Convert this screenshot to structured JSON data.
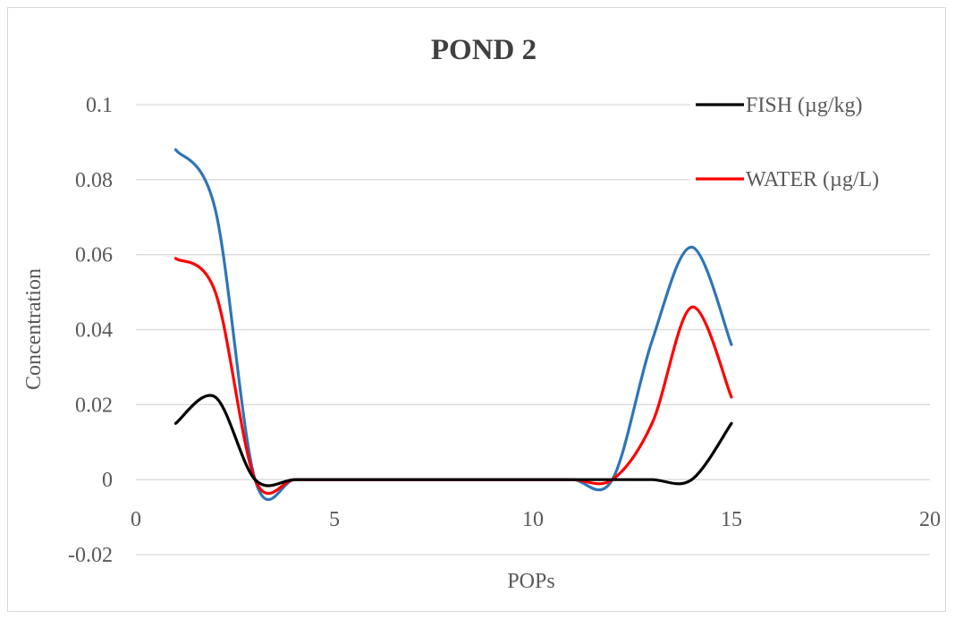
{
  "chart_data": {
    "type": "line",
    "title": "POND 2",
    "xlabel": "POPs",
    "ylabel": "Concentration",
    "xlim": [
      0,
      20
    ],
    "ylim": [
      -0.02,
      0.1
    ],
    "x_ticks": [
      0,
      5,
      10,
      15,
      20
    ],
    "y_ticks": [
      -0.02,
      0,
      0.02,
      0.04,
      0.06,
      0.08,
      0.1
    ],
    "x_tick_labels": [
      "0",
      "5",
      "10",
      "15",
      "20"
    ],
    "y_tick_labels": [
      "-0.02",
      "0",
      "0.02",
      "0.04",
      "0.06",
      "0.08",
      "0.1"
    ],
    "grid": "horizontal",
    "legend_position": "top-right",
    "smooth": true,
    "x": [
      1,
      2,
      3,
      4,
      5,
      6,
      7,
      8,
      9,
      10,
      11,
      12,
      13,
      14,
      15
    ],
    "series": [
      {
        "name": "FISH (µg/kg)",
        "color": "#000000",
        "values": [
          0.015,
          0.022,
          0,
          0,
          0,
          0,
          0,
          0,
          0,
          0,
          0,
          0,
          0,
          0,
          0.015
        ]
      },
      {
        "name": "WATER (µg/L)",
        "color": "#ff0000",
        "values": [
          0.059,
          0.05,
          0,
          0,
          0,
          0,
          0,
          0,
          0,
          0,
          0,
          0,
          0.015,
          0.046,
          0.022
        ]
      },
      {
        "name": "",
        "color": "#2e75b6",
        "values": [
          0.088,
          0.072,
          0,
          0,
          0,
          0,
          0,
          0,
          0,
          0,
          0,
          0,
          0.037,
          0.062,
          0.036
        ]
      }
    ]
  }
}
